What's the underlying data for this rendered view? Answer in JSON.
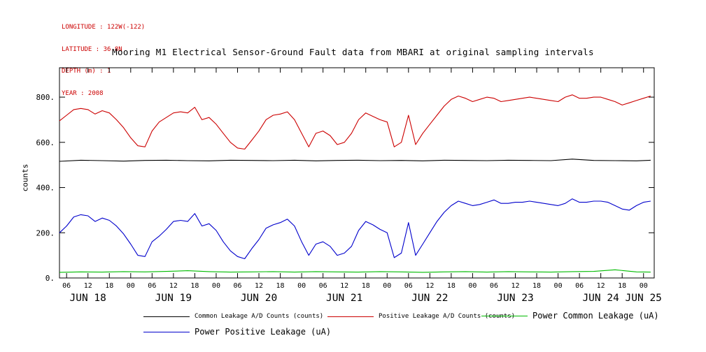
{
  "meta": {
    "lines": [
      "LONGITUDE : 122W(-122)",
      "LATITUDE : 36.8N",
      "DEPTH (m) : 1",
      "YEAR : 2008"
    ],
    "text_color": "#cc0000"
  },
  "chart_data": {
    "type": "line",
    "title": "Mooring M1 Electrical Sensor-Ground Fault data from MBARI at original sampling intervals",
    "xlabel": "",
    "ylabel": "counts",
    "grid": false,
    "legend_position": "bottom",
    "x_encoding": "hours since JUN 18 00:00 shown on axis as 06/12/18/00 ticks",
    "xlim": [
      4,
      171
    ],
    "ylim": [
      0,
      930
    ],
    "yticks": [
      0,
      200,
      400,
      600,
      800
    ],
    "ytick_labels": [
      "0.",
      "200.",
      "400.",
      "600.",
      "800."
    ],
    "xticks": [
      {
        "h": 6,
        "label": "06"
      },
      {
        "h": 12,
        "label": "12"
      },
      {
        "h": 18,
        "label": "18"
      },
      {
        "h": 24,
        "label": "00"
      },
      {
        "h": 30,
        "label": "06"
      },
      {
        "h": 36,
        "label": "12"
      },
      {
        "h": 42,
        "label": "18"
      },
      {
        "h": 48,
        "label": "00"
      },
      {
        "h": 54,
        "label": "06"
      },
      {
        "h": 60,
        "label": "12"
      },
      {
        "h": 66,
        "label": "18"
      },
      {
        "h": 72,
        "label": "00"
      },
      {
        "h": 78,
        "label": "06"
      },
      {
        "h": 84,
        "label": "12"
      },
      {
        "h": 90,
        "label": "18"
      },
      {
        "h": 96,
        "label": "00"
      },
      {
        "h": 102,
        "label": "06"
      },
      {
        "h": 108,
        "label": "12"
      },
      {
        "h": 114,
        "label": "18"
      },
      {
        "h": 120,
        "label": "00"
      },
      {
        "h": 126,
        "label": "06"
      },
      {
        "h": 132,
        "label": "12"
      },
      {
        "h": 138,
        "label": "18"
      },
      {
        "h": 144,
        "label": "00"
      },
      {
        "h": 150,
        "label": "06"
      },
      {
        "h": 156,
        "label": "12"
      },
      {
        "h": 162,
        "label": "18"
      },
      {
        "h": 168,
        "label": "00"
      }
    ],
    "day_labels": [
      {
        "h": 12,
        "label": "JUN 18"
      },
      {
        "h": 36,
        "label": "JUN 19"
      },
      {
        "h": 60,
        "label": "JUN 20"
      },
      {
        "h": 84,
        "label": "JUN 21"
      },
      {
        "h": 108,
        "label": "JUN 22"
      },
      {
        "h": 132,
        "label": "JUN 23"
      },
      {
        "h": 156,
        "label": "JUN 24"
      },
      {
        "h": 168,
        "label": "JUN 25"
      }
    ],
    "series": [
      {
        "id": "common-leakage-counts",
        "name": "Common Leakage A/D Counts (counts)",
        "color": "#000000",
        "x": [
          4,
          10,
          16,
          22,
          28,
          34,
          40,
          46,
          52,
          58,
          64,
          70,
          76,
          82,
          88,
          94,
          100,
          106,
          112,
          118,
          124,
          130,
          136,
          142,
          148,
          154,
          160,
          166,
          170
        ],
        "y": [
          516,
          521,
          519,
          517,
          520,
          521,
          519,
          518,
          521,
          520,
          519,
          521,
          518,
          520,
          521,
          519,
          520,
          518,
          521,
          520,
          519,
          521,
          520,
          519,
          526,
          520,
          519,
          518,
          521
        ]
      },
      {
        "id": "positive-leakage-counts",
        "name": "Positive Leakage A/D Counts (counts)",
        "color": "#cc0000",
        "x": [
          4,
          6,
          8,
          10,
          12,
          14,
          16,
          18,
          20,
          22,
          24,
          26,
          28,
          30,
          32,
          34,
          36,
          38,
          40,
          42,
          44,
          46,
          48,
          50,
          52,
          54,
          56,
          58,
          60,
          62,
          64,
          66,
          68,
          70,
          72,
          74,
          76,
          78,
          80,
          82,
          84,
          86,
          88,
          90,
          92,
          94,
          96,
          98,
          100,
          102,
          104,
          106,
          108,
          110,
          112,
          114,
          116,
          118,
          120,
          122,
          124,
          126,
          128,
          130,
          132,
          134,
          136,
          138,
          140,
          142,
          144,
          146,
          148,
          150,
          152,
          154,
          156,
          158,
          160,
          162,
          164,
          166,
          168,
          170
        ],
        "y": [
          695,
          720,
          745,
          750,
          745,
          725,
          740,
          730,
          700,
          665,
          620,
          585,
          580,
          650,
          690,
          710,
          730,
          735,
          730,
          755,
          700,
          710,
          680,
          640,
          600,
          575,
          570,
          610,
          650,
          700,
          720,
          725,
          735,
          700,
          640,
          580,
          640,
          650,
          630,
          590,
          600,
          640,
          700,
          730,
          715,
          700,
          690,
          580,
          600,
          720,
          590,
          640,
          680,
          720,
          760,
          790,
          805,
          795,
          780,
          790,
          800,
          795,
          780,
          785,
          790,
          795,
          800,
          795,
          790,
          785,
          780,
          800,
          810,
          795,
          795,
          800,
          800,
          790,
          780,
          765,
          775,
          785,
          795,
          805
        ]
      },
      {
        "id": "power-common-leakage",
        "name": "Power Common Leakage (uA)",
        "color": "#00bb00",
        "x": [
          4,
          10,
          16,
          22,
          28,
          34,
          40,
          46,
          52,
          58,
          64,
          70,
          76,
          82,
          88,
          94,
          100,
          106,
          112,
          118,
          124,
          130,
          136,
          142,
          148,
          154,
          160,
          166,
          170
        ],
        "y": [
          25,
          27,
          26,
          28,
          27,
          29,
          32,
          28,
          26,
          27,
          28,
          26,
          28,
          27,
          26,
          28,
          27,
          25,
          27,
          28,
          26,
          28,
          27,
          26,
          28,
          29,
          36,
          27,
          26
        ]
      },
      {
        "id": "power-positive-leakage",
        "name": "Power Positive Leakage (uA)",
        "color": "#0000cc",
        "x": [
          4,
          6,
          8,
          10,
          12,
          14,
          16,
          18,
          20,
          22,
          24,
          26,
          28,
          30,
          32,
          34,
          36,
          38,
          40,
          42,
          44,
          46,
          48,
          50,
          52,
          54,
          56,
          58,
          60,
          62,
          64,
          66,
          68,
          70,
          72,
          74,
          76,
          78,
          80,
          82,
          84,
          86,
          88,
          90,
          92,
          94,
          96,
          98,
          100,
          102,
          104,
          106,
          108,
          110,
          112,
          114,
          116,
          118,
          120,
          122,
          124,
          126,
          128,
          130,
          132,
          134,
          136,
          138,
          140,
          142,
          144,
          146,
          148,
          150,
          152,
          154,
          156,
          158,
          160,
          162,
          164,
          166,
          168,
          170
        ],
        "y": [
          200,
          230,
          270,
          280,
          275,
          250,
          265,
          255,
          230,
          195,
          150,
          100,
          95,
          160,
          185,
          215,
          250,
          255,
          250,
          285,
          230,
          240,
          210,
          160,
          120,
          95,
          85,
          130,
          170,
          220,
          235,
          245,
          260,
          230,
          160,
          100,
          150,
          160,
          140,
          100,
          110,
          140,
          210,
          250,
          235,
          215,
          200,
          90,
          110,
          245,
          100,
          150,
          200,
          250,
          290,
          320,
          340,
          330,
          320,
          325,
          335,
          345,
          330,
          330,
          335,
          335,
          340,
          335,
          330,
          325,
          320,
          330,
          350,
          335,
          335,
          340,
          340,
          335,
          320,
          305,
          300,
          320,
          335,
          340
        ]
      }
    ]
  }
}
